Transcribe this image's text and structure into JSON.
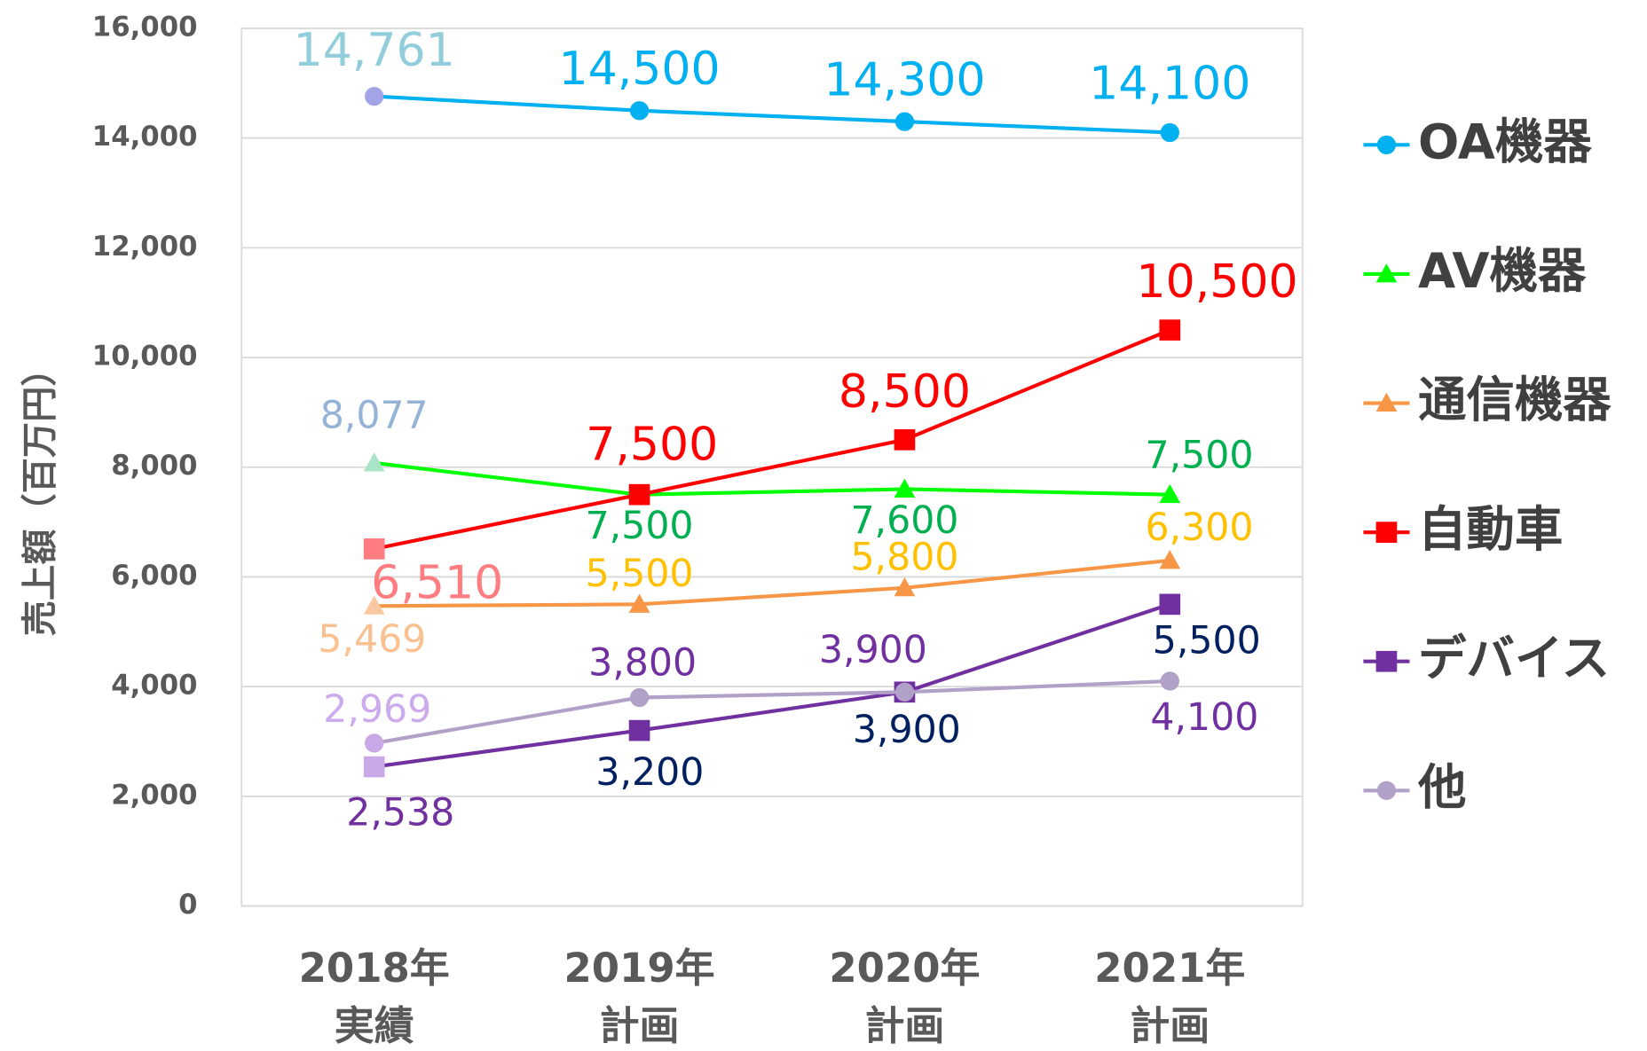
{
  "chart_data": {
    "type": "line",
    "y_label": "売上額（百万円）",
    "categories": [
      [
        "2018年",
        "実績"
      ],
      [
        "2019年",
        "計画"
      ],
      [
        "2020年",
        "計画"
      ],
      [
        "2021年",
        "計画"
      ]
    ],
    "ylim": [
      0,
      16000
    ],
    "yticks": [
      0,
      {
        "value": 2000,
        "label": "2,000"
      },
      {
        "value": 4000,
        "label": "4,000"
      },
      {
        "value": 6000,
        "label": "6,000"
      },
      {
        "value": 8000,
        "label": "8,000"
      },
      {
        "value": 10000,
        "label": "10,000"
      },
      {
        "value": 12000,
        "label": "12,000"
      },
      {
        "value": 14000,
        "label": "14,000"
      },
      {
        "value": 16000,
        "label": "16,000"
      }
    ],
    "grid": true,
    "legend": "right",
    "series": [
      {
        "name": "OA機器",
        "color": "#00b0f0",
        "marker": "circle",
        "values": [
          14761,
          14500,
          14300,
          14100
        ],
        "value_labels": [
          "14,761",
          "14,500",
          "14,300",
          "14,100"
        ],
        "marker_colors": [
          "#a3a3e8",
          "#00b0f0",
          "#00b0f0",
          "#00b0f0"
        ],
        "label_colors": [
          "#92cddc",
          "#00b0f0",
          "#00b0f0",
          "#00b0f0"
        ]
      },
      {
        "name": "AV機器",
        "color": "#00ff00",
        "marker": "triangle",
        "values": [
          8077,
          7500,
          7600,
          7500
        ],
        "value_labels": [
          "8,077",
          "7,500",
          "7,600",
          "7,500"
        ],
        "marker_colors": [
          "#a9e4c9",
          "#00ff00",
          "#00ff00",
          "#00ff00"
        ],
        "label_colors": [
          "#95b3d7",
          "#00b050",
          "#00b050",
          "#00b050"
        ]
      },
      {
        "name": "通信機器",
        "color": "#f79646",
        "marker": "triangle",
        "values": [
          5469,
          5500,
          5800,
          6300
        ],
        "value_labels": [
          "5,469",
          "5,500",
          "5,800",
          "6,300"
        ],
        "marker_colors": [
          "#fac8a0",
          "#f79646",
          "#f79646",
          "#f79646"
        ],
        "label_colors": [
          "#fac090",
          "#ffc000",
          "#ffc000",
          "#ffc000"
        ]
      },
      {
        "name": "自動車",
        "color": "#ff0000",
        "marker": "square",
        "values": [
          6510,
          7500,
          8500,
          10500
        ],
        "value_labels": [
          "6,510",
          "7,500",
          "8,500",
          "10,500"
        ],
        "marker_colors": [
          "#ff7c80",
          "#ff0000",
          "#ff0000",
          "#ff0000"
        ],
        "label_colors": [
          "#ff7c80",
          "#ff0000",
          "#ff0000",
          "#ff0000"
        ]
      },
      {
        "name": "デバイス",
        "color": "#7030a0",
        "marker": "square",
        "values": [
          2538,
          3200,
          3900,
          5500
        ],
        "value_labels": [
          "2,538",
          "3,200",
          "3,900",
          "5,500"
        ],
        "marker_colors": [
          "#c9a8e8",
          "#7030a0",
          "#7030a0",
          "#7030a0"
        ],
        "label_colors": [
          "#7030a0",
          "#002060",
          "#002060",
          "#002060"
        ]
      },
      {
        "name": "他",
        "color": "#b1a0c7",
        "marker": "circle",
        "values": [
          2969,
          3800,
          3900,
          4100
        ],
        "value_labels": [
          "2,969",
          "3,800",
          "3,900",
          "4,100"
        ],
        "marker_colors": [
          "#c9a8e8",
          "#b1a0c7",
          "#b1a0c7",
          "#b1a0c7"
        ],
        "label_colors": [
          "#ccaaee",
          "#7030a0",
          "#7030a0",
          "#7030a0"
        ]
      }
    ]
  }
}
